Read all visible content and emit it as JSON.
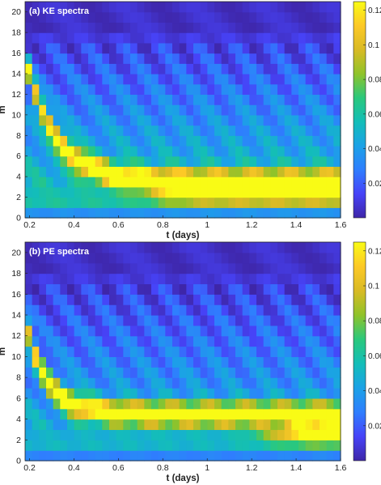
{
  "colormap": [
    "#3e26a8",
    "#4743f8",
    "#2f7efe",
    "#1ba2e6",
    "#13beb8",
    "#2bc87c",
    "#90c32a",
    "#d9ba25",
    "#fdc926",
    "#f9fb15"
  ],
  "chart_data": [
    {
      "type": "heatmap",
      "title": "(a) KE spectra",
      "xlabel": "t (days)",
      "ylabel": "m",
      "xlim": [
        0.18,
        1.6
      ],
      "ylim": [
        0,
        21
      ],
      "x_ticks": [
        "0.2",
        "0.4",
        "0.6",
        "0.8",
        "1",
        "1.2",
        "1.4",
        "1.6"
      ],
      "y_ticks": [
        "0",
        "2",
        "4",
        "6",
        "8",
        "10",
        "12",
        "14",
        "16",
        "18",
        "20"
      ],
      "colorbar": {
        "range": [
          0,
          0.125
        ],
        "ticks": [
          "0.02",
          "0.04",
          "0.06",
          "0.08",
          "0.1",
          "0.12"
        ]
      },
      "features": {
        "ridge_from_m": 15.5,
        "ridge_to_m": 3.5,
        "ridge_decay_days": 0.14,
        "ridge_peak": 0.1,
        "low_mode_peak": 0.13,
        "low_mode_center_m": 3,
        "low_mode_onset_days": 0.8,
        "background_low_m": 0.065,
        "background_high_m": 0.005
      }
    },
    {
      "type": "heatmap",
      "title": "(b) PE spectra",
      "xlabel": "t (days)",
      "ylabel": "m",
      "xlim": [
        0.18,
        1.6
      ],
      "ylim": [
        0,
        21
      ],
      "x_ticks": [
        "0.2",
        "0.4",
        "0.6",
        "0.8",
        "1",
        "1.2",
        "1.4",
        "1.6"
      ],
      "y_ticks": [
        "0",
        "2",
        "4",
        "6",
        "8",
        "10",
        "12",
        "14",
        "16",
        "18",
        "20"
      ],
      "colorbar": {
        "range": [
          0,
          0.125
        ],
        "ticks": [
          "0.02",
          "0.04",
          "0.06",
          "0.08",
          "0.1",
          "0.12"
        ]
      },
      "features": {
        "ridge_from_m": 13.5,
        "ridge_to_m": 4.5,
        "ridge_decay_days": 0.1,
        "ridge_peak": 0.1,
        "low_mode_peak": 0.1,
        "low_mode_center_m": 3,
        "low_mode_onset_days": 1.3,
        "background_low_m": 0.055,
        "background_high_m": 0.005
      }
    }
  ]
}
